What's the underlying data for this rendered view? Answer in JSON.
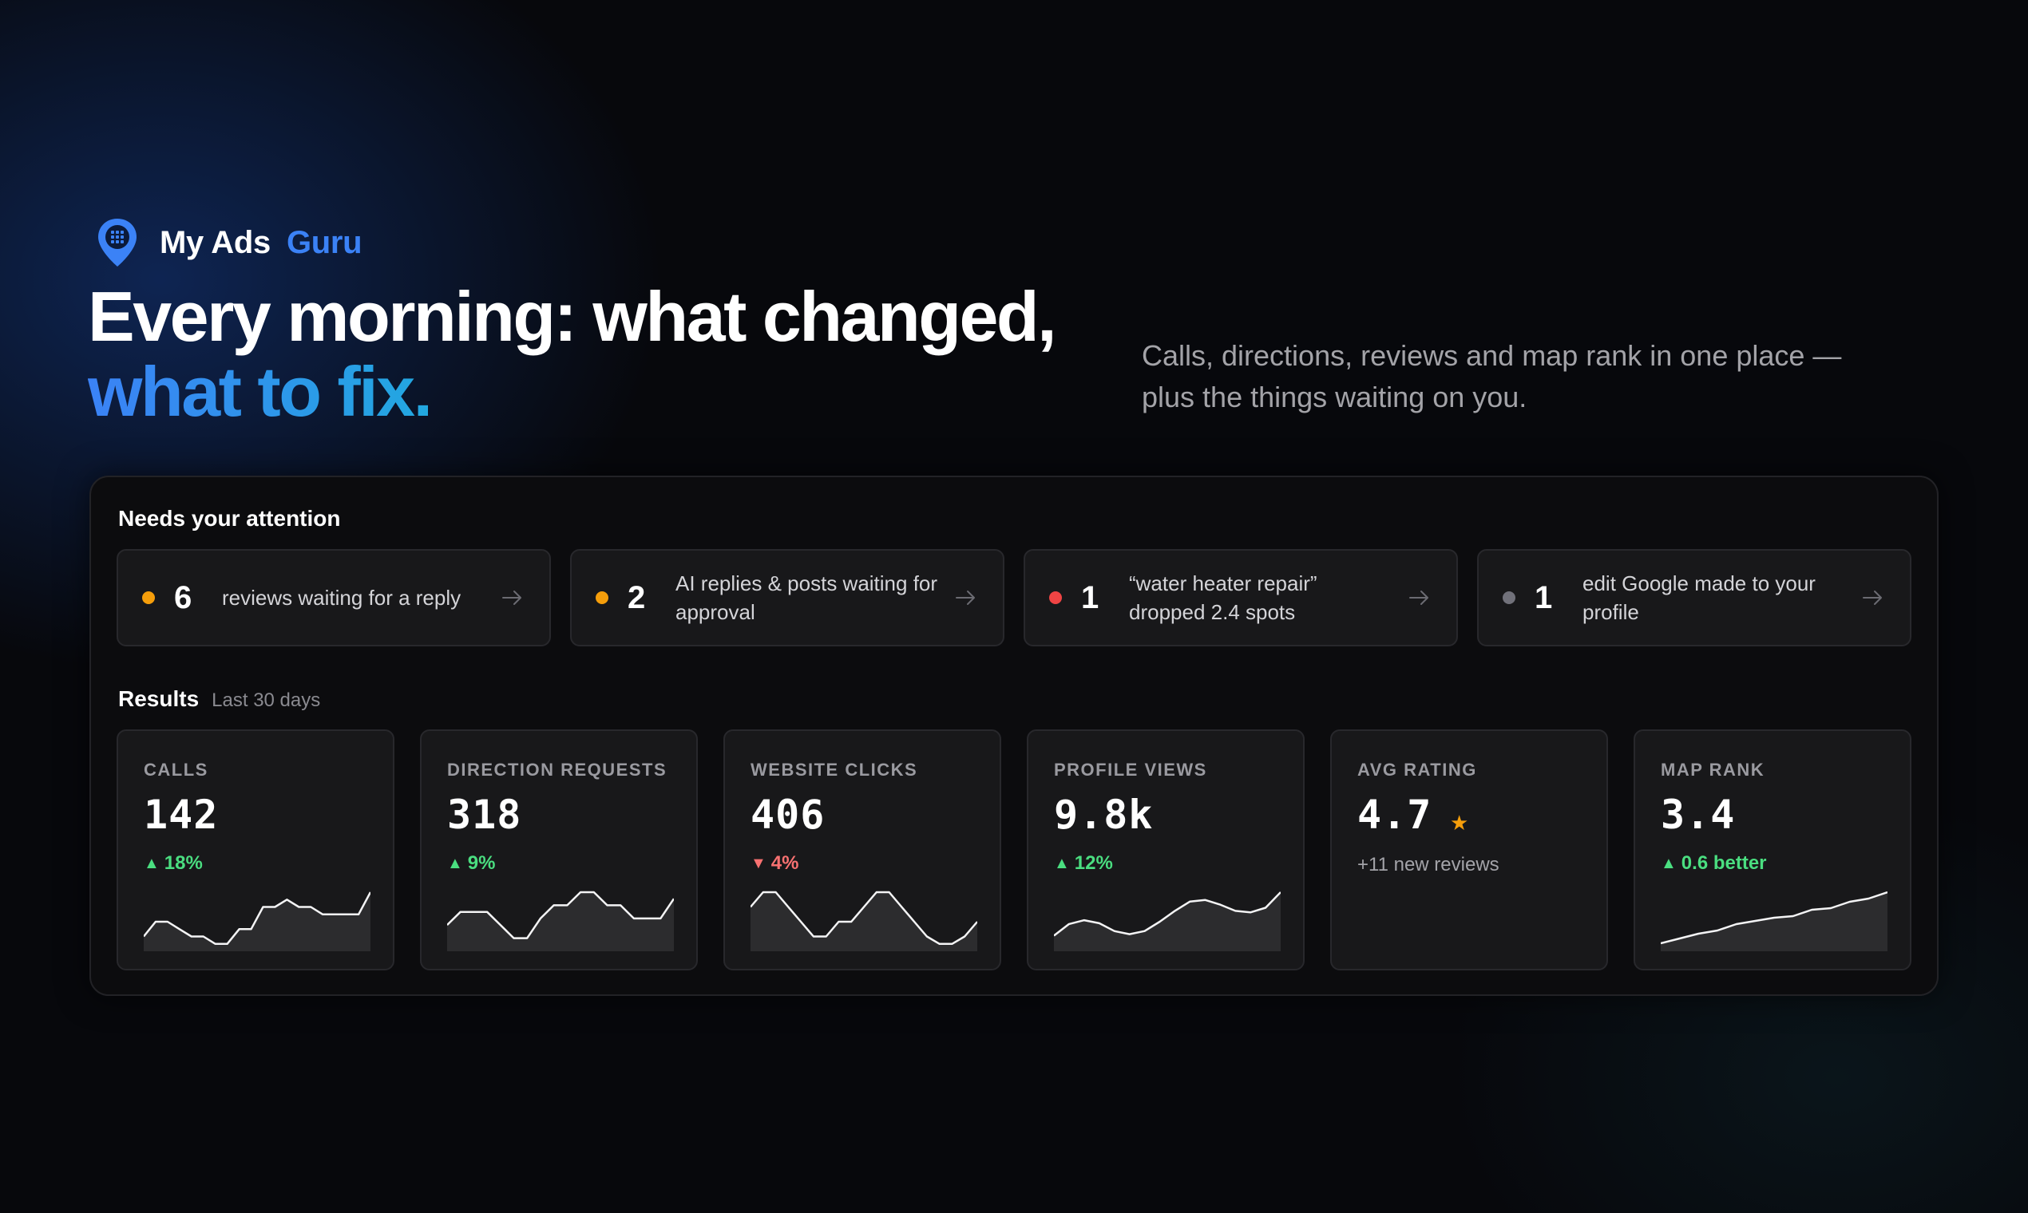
{
  "brand": {
    "name": "My Ads",
    "accent": "Guru"
  },
  "hero": {
    "headline_line1": "Every morning: what changed,",
    "headline_line2": "what to fix.",
    "subhead": "Calls, directions, reviews and map rank in one place — plus the things waiting on you."
  },
  "attention": {
    "title": "Needs your attention",
    "items": [
      {
        "count": "6",
        "text": "reviews waiting for a reply",
        "dot_color": "#f59e0b"
      },
      {
        "count": "2",
        "text": "AI replies & posts waiting for approval",
        "dot_color": "#f59e0b"
      },
      {
        "count": "1",
        "text": "“water heater repair” dropped 2.4 spots",
        "dot_color": "#ef4444"
      },
      {
        "count": "1",
        "text": "edit Google made to your profile",
        "dot_color": "#71717a"
      }
    ]
  },
  "results": {
    "title": "Results",
    "period": "Last 30 days",
    "metrics": [
      {
        "label": "CALLS",
        "value": "142",
        "delta": "18%",
        "direction": "up",
        "spark": [
          2,
          4,
          4,
          3,
          2,
          2,
          1,
          1,
          3,
          3,
          6,
          6,
          7,
          6,
          6,
          5,
          5,
          5,
          5,
          8
        ]
      },
      {
        "label": "DIRECTION REQUESTS",
        "value": "318",
        "delta": "9%",
        "direction": "up",
        "spark": [
          4,
          6,
          6,
          6,
          4,
          2,
          2,
          5,
          7,
          7,
          9,
          9,
          7,
          7,
          5,
          5,
          5,
          8
        ]
      },
      {
        "label": "WEBSITE CLICKS",
        "value": "406",
        "delta": "4%",
        "direction": "down",
        "spark": [
          6,
          8,
          8,
          6,
          4,
          2,
          2,
          4,
          4,
          6,
          8,
          8,
          6,
          4,
          2,
          1,
          1,
          2,
          4
        ]
      },
      {
        "label": "PROFILE VIEWS",
        "value": "9.8k",
        "delta": "12%",
        "direction": "up",
        "spark": [
          2,
          3.5,
          4,
          3.6,
          2.6,
          2.2,
          2.6,
          3.8,
          5.2,
          6.4,
          6.6,
          6,
          5.2,
          5,
          5.6,
          7.6
        ]
      },
      {
        "label": "AVG RATING",
        "value": "4.7",
        "note": "+11 new reviews",
        "star": "★"
      },
      {
        "label": "MAP RANK",
        "value": "3.4",
        "delta": "0.6 better",
        "direction": "up",
        "spark": [
          1,
          1.6,
          2.2,
          2.6,
          3.4,
          3.8,
          4.2,
          4.4,
          5.2,
          5.4,
          6.2,
          6.6,
          7.4
        ]
      }
    ]
  },
  "colors": {
    "accent": "#3b82f6",
    "accent_cyan": "#22a8e0",
    "up": "#4ade80",
    "down": "#f87171",
    "warning": "#f59e0b",
    "danger": "#ef4444",
    "neutral": "#71717a"
  }
}
